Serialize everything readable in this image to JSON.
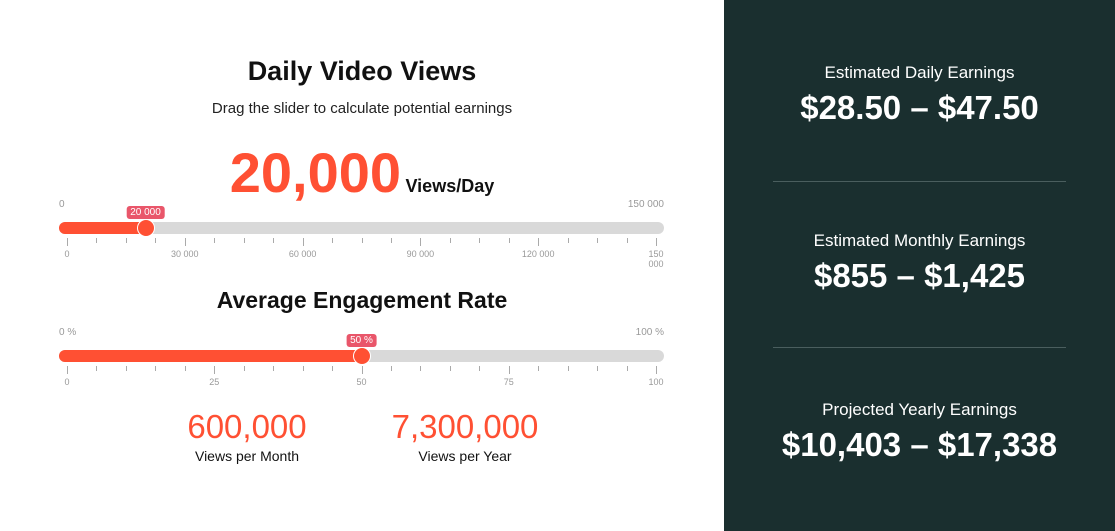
{
  "views": {
    "title": "Daily Video Views",
    "subtitle": "Drag the slider to calculate potential earnings",
    "value": "20,000",
    "unit": "Views/Day",
    "slider": {
      "min_label": "0",
      "max_label": "150 000",
      "tooltip": "20 000",
      "fraction": 0.1333,
      "tick_labels": [
        "0",
        "30 000",
        "60 000",
        "90 000",
        "120 000",
        "150 000"
      ]
    }
  },
  "engagement": {
    "title": "Average Engagement Rate",
    "slider": {
      "min_label": "0 %",
      "max_label": "100 %",
      "tooltip": "50 %",
      "fraction": 0.5,
      "tick_labels": [
        "0",
        "25",
        "50",
        "75",
        "100"
      ]
    }
  },
  "stats": [
    {
      "value": "600,000",
      "label": "Views per Month"
    },
    {
      "value": "7,300,000",
      "label": "Views per Year"
    }
  ],
  "earnings": [
    {
      "label": "Estimated Daily Earnings",
      "value": "$28.50 – $47.50"
    },
    {
      "label": "Estimated Monthly Earnings",
      "value": "$855 – $1,425"
    },
    {
      "label": "Projected Yearly Earnings",
      "value": "$10,403 – $17,338"
    }
  ],
  "colors": {
    "accent": "#ff5033",
    "panel": "#1a2f2f",
    "tooltip": "#e9566a"
  }
}
